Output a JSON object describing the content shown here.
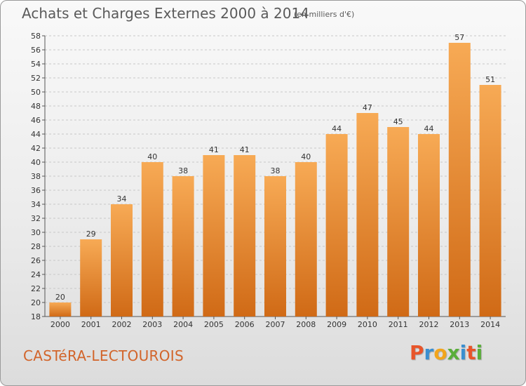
{
  "header": {
    "title": "Achats et Charges Externes 2000 à 2014",
    "unit": "(en milliers d'€)"
  },
  "footer": {
    "city": "CASTéRA-LECTOUROIS",
    "logo_letters": [
      "P",
      "r",
      "o",
      "x",
      "i",
      "t",
      "i"
    ],
    "logo_colors": [
      "#e8552a",
      "#3a8fd0",
      "#f2a51c",
      "#5aae3a",
      "#3a8fd0",
      "#e8552a",
      "#5aae3a"
    ]
  },
  "chart_data": {
    "type": "bar",
    "categories": [
      "2000",
      "2001",
      "2002",
      "2003",
      "2004",
      "2005",
      "2006",
      "2007",
      "2008",
      "2009",
      "2010",
      "2011",
      "2012",
      "2013",
      "2014"
    ],
    "values": [
      20,
      29,
      34,
      40,
      38,
      41,
      41,
      38,
      40,
      44,
      47,
      45,
      44,
      57,
      51
    ],
    "ylim": [
      18,
      58
    ],
    "yticks": [
      18,
      20,
      22,
      24,
      26,
      28,
      30,
      32,
      34,
      36,
      38,
      40,
      42,
      44,
      46,
      48,
      50,
      52,
      54,
      56,
      58
    ],
    "grid": true,
    "bar_color": "#f0902c",
    "bar_color_light": "#f7aa55",
    "bar_color_dark": "#d06a16"
  }
}
